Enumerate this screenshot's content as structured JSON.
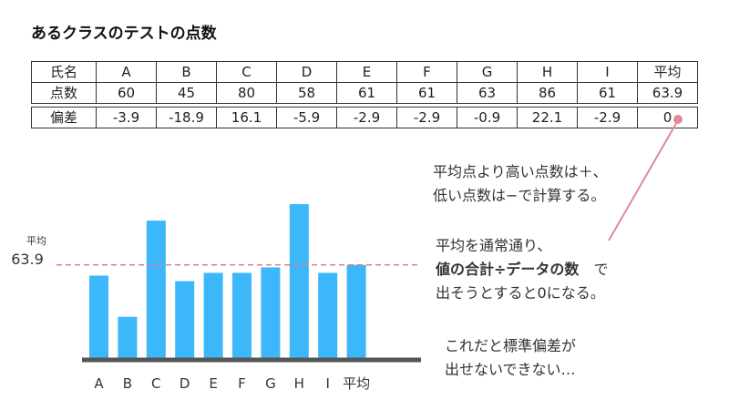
{
  "title": "あるクラスのテストの点数",
  "table": {
    "name_label": "氏名",
    "score_label": "点数",
    "dev_label": "偏差",
    "names": [
      "A",
      "B",
      "C",
      "D",
      "E",
      "F",
      "G",
      "H",
      "I",
      "平均"
    ],
    "scores": [
      "60",
      "45",
      "80",
      "58",
      "61",
      "61",
      "63",
      "86",
      "61",
      "63.9"
    ],
    "deviations": [
      "-3.9",
      "-18.9",
      "16.1",
      "-5.9",
      "-2.9",
      "-2.9",
      "-0.9",
      "22.1",
      "-2.9",
      "0"
    ]
  },
  "notes": {
    "line1": "平均点より高い点数は＋、",
    "line2": "低い点数は−で計算する。",
    "line3": "平均を通常通り、",
    "line4_bold": "値の合計÷データの数",
    "line4_rest": "で",
    "line5": "出そうとすると0になる。",
    "line6": "これだと標準偏差が",
    "line7": "出せないできない…"
  },
  "colors": {
    "bar": "#3bb7fa",
    "avg_line": "#e57c86",
    "baseline": "#555555",
    "callout": "#e08a96"
  },
  "chart_data": {
    "type": "bar",
    "categories": [
      "A",
      "B",
      "C",
      "D",
      "E",
      "F",
      "G",
      "H",
      "I",
      "平均"
    ],
    "values": [
      60,
      45,
      80,
      58,
      61,
      61,
      63,
      86,
      61,
      63.9
    ],
    "mean_line": {
      "label": "平均",
      "value_label": "63.9",
      "value": 63.9
    },
    "ylim": [
      30,
      90
    ],
    "grid": false,
    "legend": "none"
  }
}
